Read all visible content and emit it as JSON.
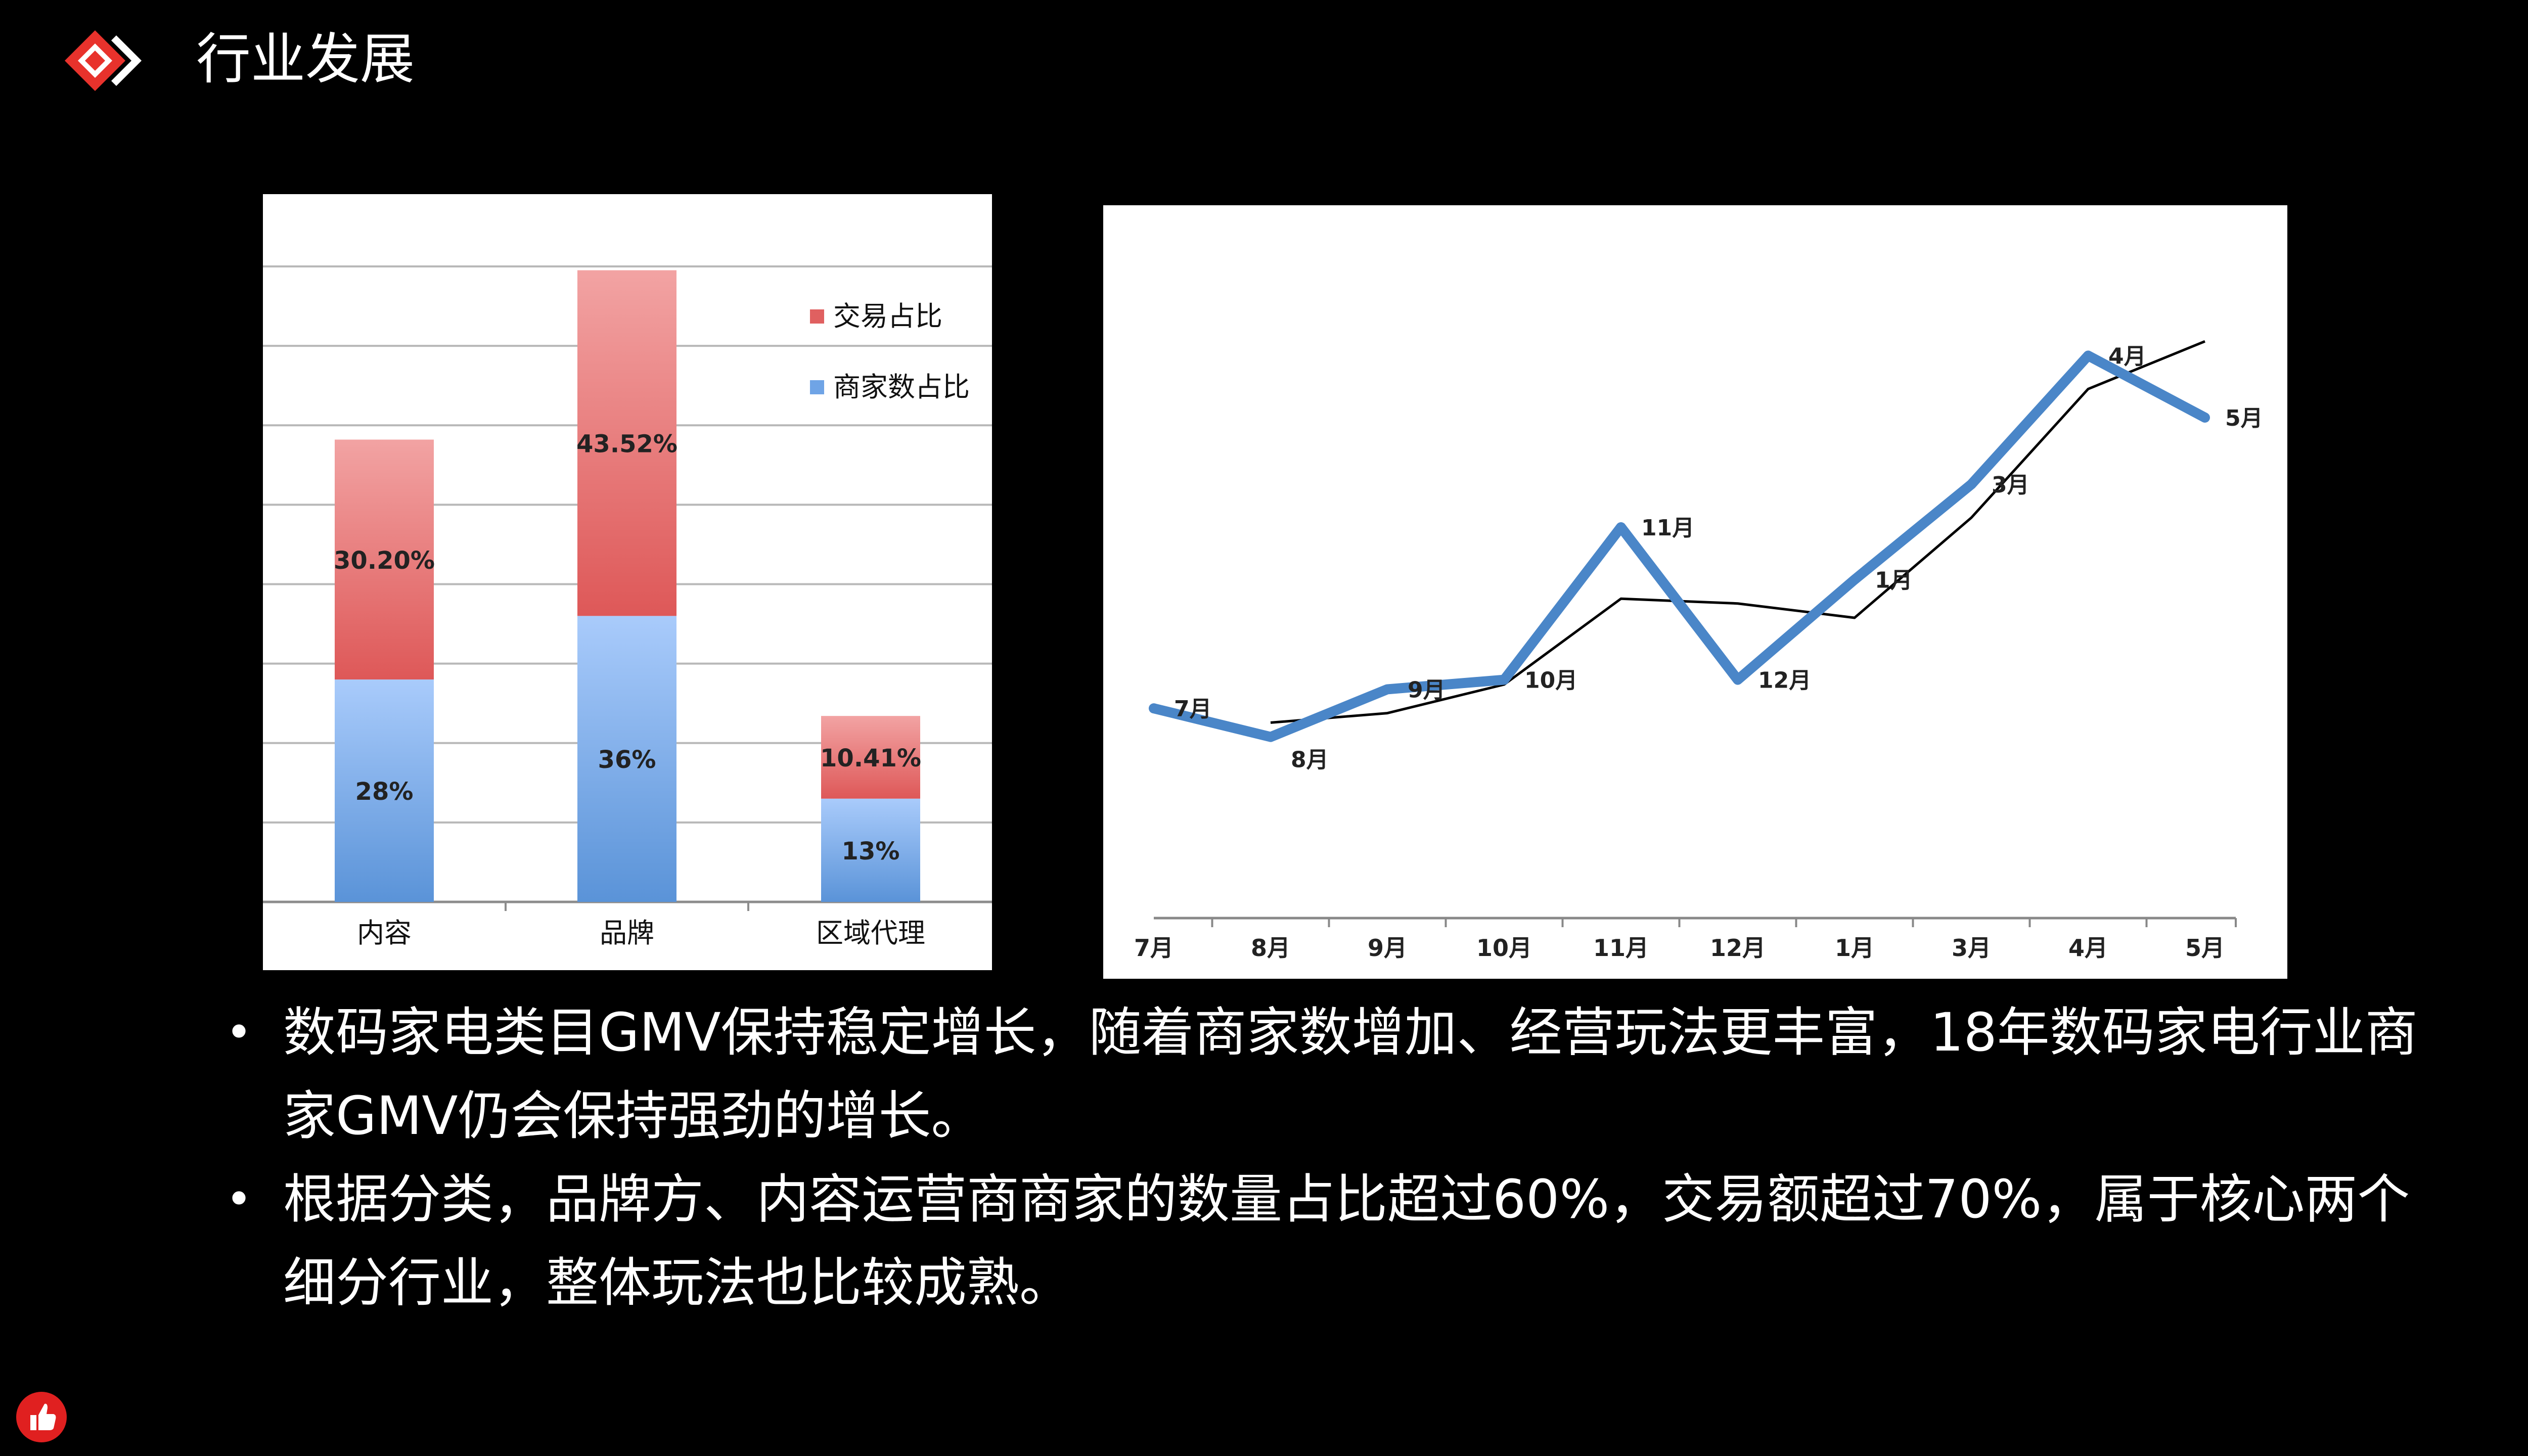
{
  "header": {
    "title": "行业发展",
    "logo_icon": "red-diamond-logo-icon",
    "accent_color": "#e8322c"
  },
  "chart_data": [
    {
      "type": "bar",
      "stacked": true,
      "categories": [
        "内容",
        "品牌",
        "区域代理"
      ],
      "series": [
        {
          "name": "商家数占比",
          "values": [
            28,
            36,
            13
          ],
          "labels": [
            "28%",
            "36%",
            "13%"
          ],
          "color": "#6fa4e6"
        },
        {
          "name": "交易占比",
          "values": [
            30.2,
            43.52,
            10.41
          ],
          "labels": [
            "30.20%",
            "43.52%",
            "10.41%"
          ],
          "color": "#e06060"
        }
      ],
      "ylim": [
        0,
        80
      ],
      "grid": true,
      "legend": "top-right"
    },
    {
      "type": "line",
      "categories": [
        "7月",
        "8月",
        "9月",
        "10月",
        "11月",
        "12月",
        "1月",
        "3月",
        "4月",
        "5月"
      ],
      "series": [
        {
          "values": [
            44,
            38,
            48,
            50,
            82,
            50,
            71,
            91,
            118,
            105
          ],
          "labels": [
            "7月",
            "8月",
            "9月",
            "10月",
            "11月",
            "12月",
            "1月",
            "3月",
            "4月",
            "5月"
          ],
          "color": "#4a86c8"
        },
        {
          "values": [
            null,
            41,
            43,
            49,
            67,
            66,
            63,
            84,
            111,
            121
          ],
          "color": "#000000"
        }
      ],
      "ylim": [
        0,
        140
      ],
      "grid": false
    }
  ],
  "bullets": [
    "数码家电类目GMV保持稳定增长，随着商家数增加、经营玩法更丰富，18年数码家电行业商家GMV仍会保持强劲的增长。",
    "根据分类，品牌方、内容运营商商家的数量占比超过60%，交易额超过70%，属于核心两个细分行业，整体玩法也比较成熟。"
  ],
  "bullet_marker": "•",
  "footer": {
    "like_icon": "thumbs-up-icon"
  }
}
